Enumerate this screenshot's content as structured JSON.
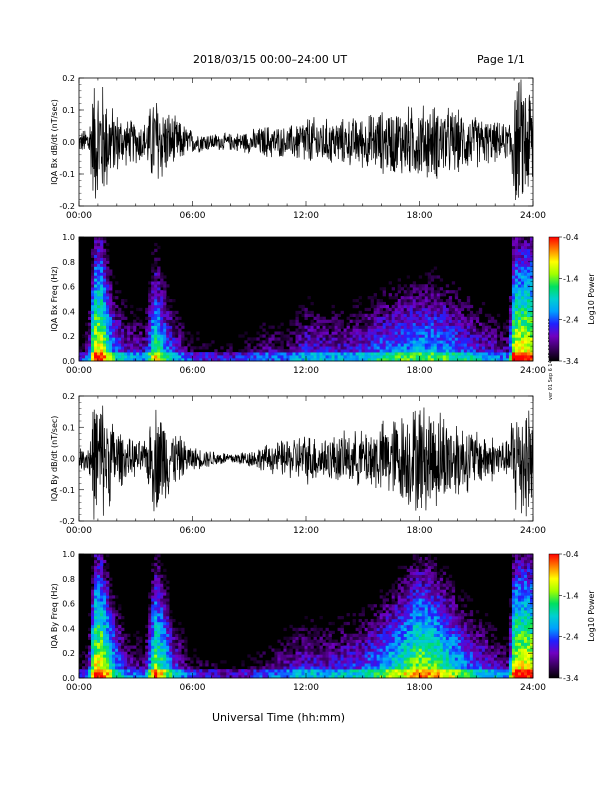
{
  "header": {
    "title": "2018/03/15  00:00–24:00 UT",
    "page": "Page 1/1"
  },
  "footer": {
    "xlabel": "Universal Time (hh:mm)"
  },
  "stamp": "ver 01 Sep 6 14:05:11 EDT 2019",
  "colors": {
    "spectrogram_scale": [
      "#000000",
      "#3a0060",
      "#7000c0",
      "#2020ff",
      "#00a0ff",
      "#00d0d0",
      "#00e060",
      "#a0ff00",
      "#ffff00",
      "#ff8000",
      "#ff0000"
    ]
  },
  "chart_data": [
    {
      "type": "line",
      "ylabel": "IQA Bx dB/dt (nT/sec)",
      "x_ticks": [
        "00:00",
        "06:00",
        "12:00",
        "18:00",
        "24:00"
      ],
      "y_ticks": [
        "-0.2",
        "-0.1",
        "0.0",
        "0.1",
        "0.2"
      ],
      "xlim": [
        0,
        24
      ],
      "ylim": [
        -0.2,
        0.2
      ],
      "x_unit": "hours UT",
      "envelope": {
        "x": [
          0,
          0.5,
          0.8,
          1.2,
          1.8,
          2.5,
          3.5,
          4.0,
          4.3,
          4.6,
          5.0,
          6.0,
          7.0,
          8.0,
          9.0,
          10.0,
          11.0,
          11.5,
          12.0,
          13.0,
          14.0,
          15.0,
          16.0,
          17.0,
          18.0,
          19.0,
          20.0,
          21.0,
          22.0,
          22.7,
          23.0,
          24.0
        ],
        "amplitude": [
          0.03,
          0.06,
          0.22,
          0.22,
          0.12,
          0.08,
          0.07,
          0.18,
          0.15,
          0.12,
          0.09,
          0.04,
          0.03,
          0.03,
          0.04,
          0.06,
          0.05,
          0.07,
          0.09,
          0.08,
          0.08,
          0.09,
          0.11,
          0.12,
          0.13,
          0.13,
          0.11,
          0.09,
          0.07,
          0.06,
          0.22,
          0.22
        ]
      }
    },
    {
      "type": "heatmap",
      "ylabel": "IQA Bx Freq (Hz)",
      "colorbar_label": "Log10 Power",
      "colorbar_ticks": [
        "-0.4",
        "-1.4",
        "-2.4",
        "-3.4"
      ],
      "x_ticks": [
        "00:00",
        "06:00",
        "12:00",
        "18:00",
        "24:00"
      ],
      "y_ticks": [
        "0.0",
        "0.2",
        "0.4",
        "0.6",
        "0.8",
        "1.0"
      ],
      "xlim": [
        0,
        24
      ],
      "ylim": [
        0,
        1.0
      ],
      "zlim": [
        -3.4,
        -0.4
      ]
    },
    {
      "type": "line",
      "ylabel": "IQA By dB/dt (nT/sec)",
      "x_ticks": [
        "00:00",
        "06:00",
        "12:00",
        "18:00",
        "24:00"
      ],
      "y_ticks": [
        "-0.2",
        "-0.1",
        "0.0",
        "0.1",
        "0.2"
      ],
      "xlim": [
        0,
        24
      ],
      "ylim": [
        -0.2,
        0.2
      ],
      "x_unit": "hours UT",
      "envelope": {
        "x": [
          0,
          0.5,
          0.8,
          1.2,
          1.8,
          2.5,
          3.5,
          4.0,
          4.3,
          4.6,
          5.0,
          6.0,
          7.0,
          8.0,
          9.0,
          10.0,
          11.0,
          11.5,
          12.0,
          13.0,
          14.0,
          15.0,
          16.0,
          17.0,
          18.0,
          19.0,
          20.0,
          21.0,
          22.0,
          22.7,
          23.0,
          24.0
        ],
        "amplitude": [
          0.03,
          0.06,
          0.22,
          0.22,
          0.14,
          0.07,
          0.06,
          0.2,
          0.18,
          0.15,
          0.1,
          0.04,
          0.03,
          0.02,
          0.03,
          0.05,
          0.07,
          0.08,
          0.09,
          0.08,
          0.09,
          0.1,
          0.13,
          0.16,
          0.2,
          0.18,
          0.14,
          0.1,
          0.08,
          0.06,
          0.22,
          0.22
        ]
      }
    },
    {
      "type": "heatmap",
      "ylabel": "IQA By Freq (Hz)",
      "colorbar_label": "Log10 Power",
      "colorbar_ticks": [
        "-0.4",
        "-1.4",
        "-2.4",
        "-3.4"
      ],
      "x_ticks": [
        "00:00",
        "06:00",
        "12:00",
        "18:00",
        "24:00"
      ],
      "y_ticks": [
        "0.0",
        "0.2",
        "0.4",
        "0.6",
        "0.8",
        "1.0"
      ],
      "xlim": [
        0,
        24
      ],
      "ylim": [
        0,
        1.0
      ],
      "zlim": [
        -3.4,
        -0.4
      ]
    }
  ]
}
